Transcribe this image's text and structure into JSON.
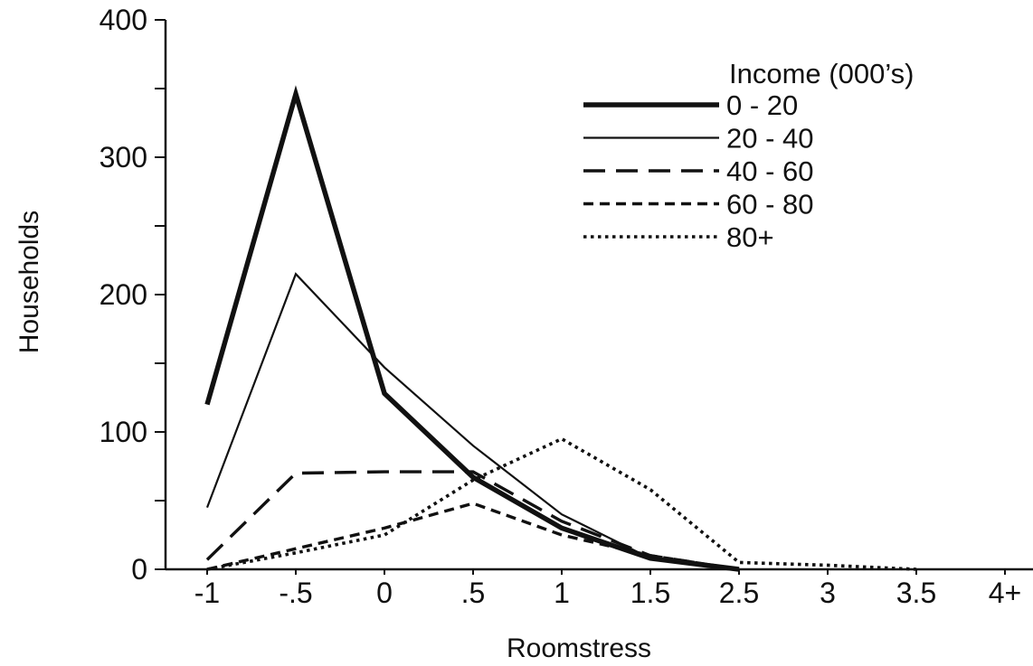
{
  "chart_data": {
    "type": "line",
    "title": "",
    "xlabel": "Roomstress",
    "ylabel": "Households",
    "categories": [
      "-1",
      "-.5",
      "0",
      ".5",
      "1",
      "1.5",
      "2.5",
      "3",
      "3.5",
      "4+"
    ],
    "ylim": [
      0,
      400
    ],
    "yticks": [
      0,
      100,
      200,
      300,
      400
    ],
    "legend_title": "Income (000’s)",
    "legend_position": "top-right",
    "grid": false,
    "series": [
      {
        "name": "0 - 20",
        "style": "thick-solid",
        "values": [
          120,
          346,
          128,
          67,
          30,
          8,
          0,
          null,
          null,
          null
        ]
      },
      {
        "name": "20 - 40",
        "style": "thin-solid",
        "values": [
          45,
          215,
          147,
          90,
          40,
          8,
          0,
          null,
          null,
          null
        ]
      },
      {
        "name": "40 - 60",
        "style": "long-dash",
        "values": [
          7,
          70,
          71,
          71,
          35,
          10,
          0,
          null,
          null,
          null
        ]
      },
      {
        "name": "60 - 80",
        "style": "short-dash",
        "values": [
          0,
          15,
          30,
          48,
          25,
          10,
          0,
          null,
          null,
          null
        ]
      },
      {
        "name": "80+",
        "style": "dotted",
        "values": [
          0,
          12,
          25,
          65,
          95,
          58,
          5,
          3,
          0,
          null
        ]
      }
    ]
  }
}
